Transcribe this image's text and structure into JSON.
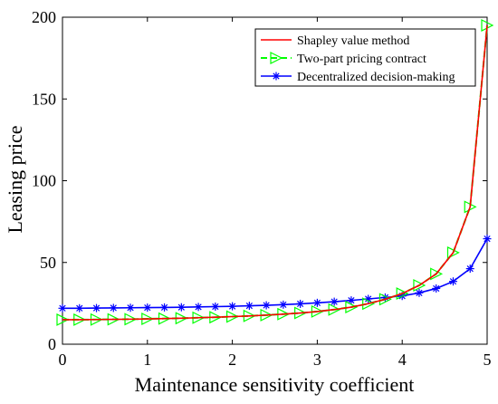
{
  "chart_data": {
    "type": "line",
    "xlabel": "Maintenance sensitivity coefficient",
    "ylabel": "Leasing price",
    "xlim": [
      0,
      5
    ],
    "ylim": [
      0,
      200
    ],
    "xticks": [
      0,
      1,
      2,
      3,
      4,
      5
    ],
    "yticks": [
      0,
      50,
      100,
      150,
      200
    ],
    "grid": false,
    "legend_position": "top-right",
    "x": [
      0,
      0.2,
      0.4,
      0.6,
      0.8,
      1.0,
      1.2,
      1.4,
      1.6,
      1.8,
      2.0,
      2.2,
      2.4,
      2.6,
      2.8,
      3.0,
      3.2,
      3.4,
      3.6,
      3.8,
      4.0,
      4.2,
      4.4,
      4.6,
      4.8,
      5.0
    ],
    "series": [
      {
        "name": "Shapley value method",
        "color": "#ff0000",
        "style": "solid",
        "marker": "none",
        "values": [
          15.0,
          15.0,
          15.1,
          15.2,
          15.3,
          15.5,
          15.7,
          15.9,
          16.2,
          16.5,
          16.9,
          17.3,
          17.8,
          18.4,
          19.1,
          20.0,
          21.2,
          22.7,
          24.8,
          27.5,
          31.0,
          36.0,
          43.0,
          56.0,
          84.0,
          195.0
        ]
      },
      {
        "name": "Two-part pricing contract",
        "color": "#00ff00",
        "style": "dashed",
        "marker": "triangle-right",
        "values": [
          15.0,
          15.0,
          15.1,
          15.2,
          15.3,
          15.5,
          15.7,
          15.9,
          16.2,
          16.5,
          16.9,
          17.3,
          17.8,
          18.4,
          19.1,
          20.0,
          21.2,
          22.7,
          24.8,
          27.5,
          31.0,
          36.0,
          43.0,
          56.0,
          84.0,
          195.0
        ]
      },
      {
        "name": "Decentralized decision-making",
        "color": "#0000ff",
        "style": "solid",
        "marker": "asterisk",
        "values": [
          22.0,
          22.0,
          22.1,
          22.2,
          22.3,
          22.4,
          22.5,
          22.6,
          22.8,
          23.0,
          23.2,
          23.5,
          23.8,
          24.2,
          24.7,
          25.3,
          26.0,
          26.8,
          27.7,
          28.6,
          29.5,
          31.4,
          34.1,
          38.4,
          46.2,
          64.5
        ]
      }
    ]
  }
}
